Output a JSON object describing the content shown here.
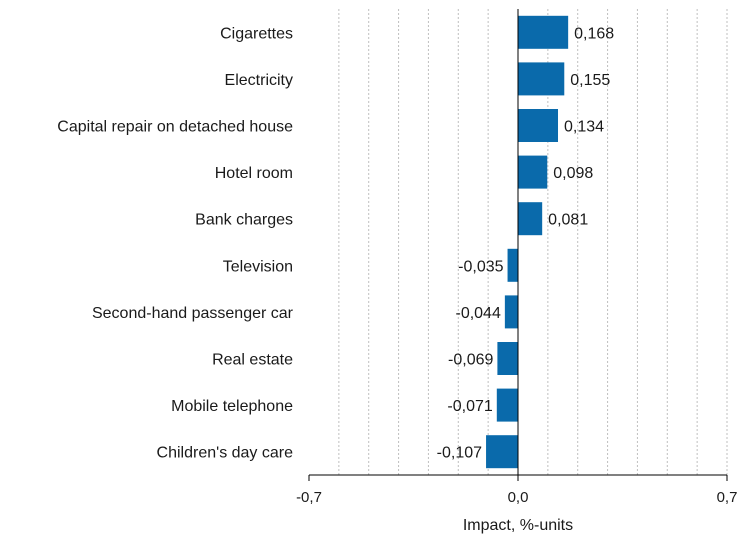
{
  "chart_data": {
    "type": "bar",
    "orientation": "horizontal",
    "categories": [
      "Cigarettes",
      "Electricity",
      "Capital repair on detached house",
      "Hotel room",
      "Bank charges",
      "Television",
      "Second-hand passenger car",
      "Real estate",
      "Mobile telephone",
      "Children's day care"
    ],
    "values": [
      0.168,
      0.155,
      0.134,
      0.098,
      0.081,
      -0.035,
      -0.044,
      -0.069,
      -0.071,
      -0.107
    ],
    "value_labels": [
      "0,168",
      "0,155",
      "0,134",
      "0,098",
      "0,081",
      "-0,035",
      "-0,044",
      "-0,069",
      "-0,071",
      "-0,107"
    ],
    "xlabel": "Impact, %-units",
    "xlim": [
      -0.7,
      0.7
    ],
    "x_ticks": [
      -0.7,
      0.0,
      0.7
    ],
    "x_tick_labels": [
      "-0,7",
      "0,0",
      "0,7"
    ],
    "grid": "vertical dotted",
    "bar_color": "#0a6aab",
    "grid_color": "#bfbfbf"
  }
}
